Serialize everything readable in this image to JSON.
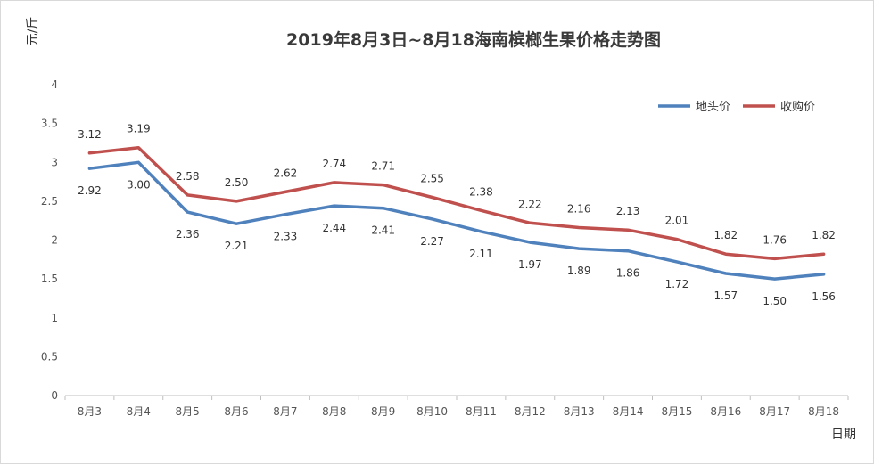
{
  "chart_data": {
    "type": "line",
    "title": "2019年8月3日~8月18海南槟榔生果价格走势图",
    "xlabel": "日期",
    "ylabel": "元/斤",
    "ylim": [
      0,
      4
    ],
    "yticks": [
      "0",
      "0.5",
      "1",
      "1.5",
      "2",
      "2.5",
      "3",
      "3.5",
      "4"
    ],
    "grid": false,
    "legend_position": "top-right",
    "categories": [
      "8月3",
      "8月4",
      "8月5",
      "8月6",
      "8月7",
      "8月8",
      "8月9",
      "8月10",
      "8月11",
      "8月12",
      "8月13",
      "8月14",
      "8月15",
      "8月16",
      "8月17",
      "8月18"
    ],
    "series": [
      {
        "name": "地头价",
        "color": "#4f81bd",
        "values": [
          2.92,
          3.0,
          2.36,
          2.21,
          2.33,
          2.44,
          2.41,
          2.27,
          2.11,
          1.97,
          1.89,
          1.86,
          1.72,
          1.57,
          1.5,
          1.56
        ],
        "labels": [
          "2.92",
          "3.00",
          "2.36",
          "2.21",
          "2.33",
          "2.44",
          "2.41",
          "2.27",
          "2.11",
          "1.97",
          "1.89",
          "1.86",
          "1.72",
          "1.57",
          "1.50",
          "1.56"
        ]
      },
      {
        "name": "收购价",
        "color": "#c0504d",
        "values": [
          3.12,
          3.19,
          2.58,
          2.5,
          2.62,
          2.74,
          2.71,
          2.55,
          2.38,
          2.22,
          2.16,
          2.13,
          2.01,
          1.82,
          1.76,
          1.82
        ],
        "labels": [
          "3.12",
          "3.19",
          "2.58",
          "2.50",
          "2.62",
          "2.74",
          "2.71",
          "2.55",
          "2.38",
          "2.22",
          "2.16",
          "2.13",
          "2.01",
          "1.82",
          "1.76",
          "1.82"
        ]
      }
    ]
  }
}
